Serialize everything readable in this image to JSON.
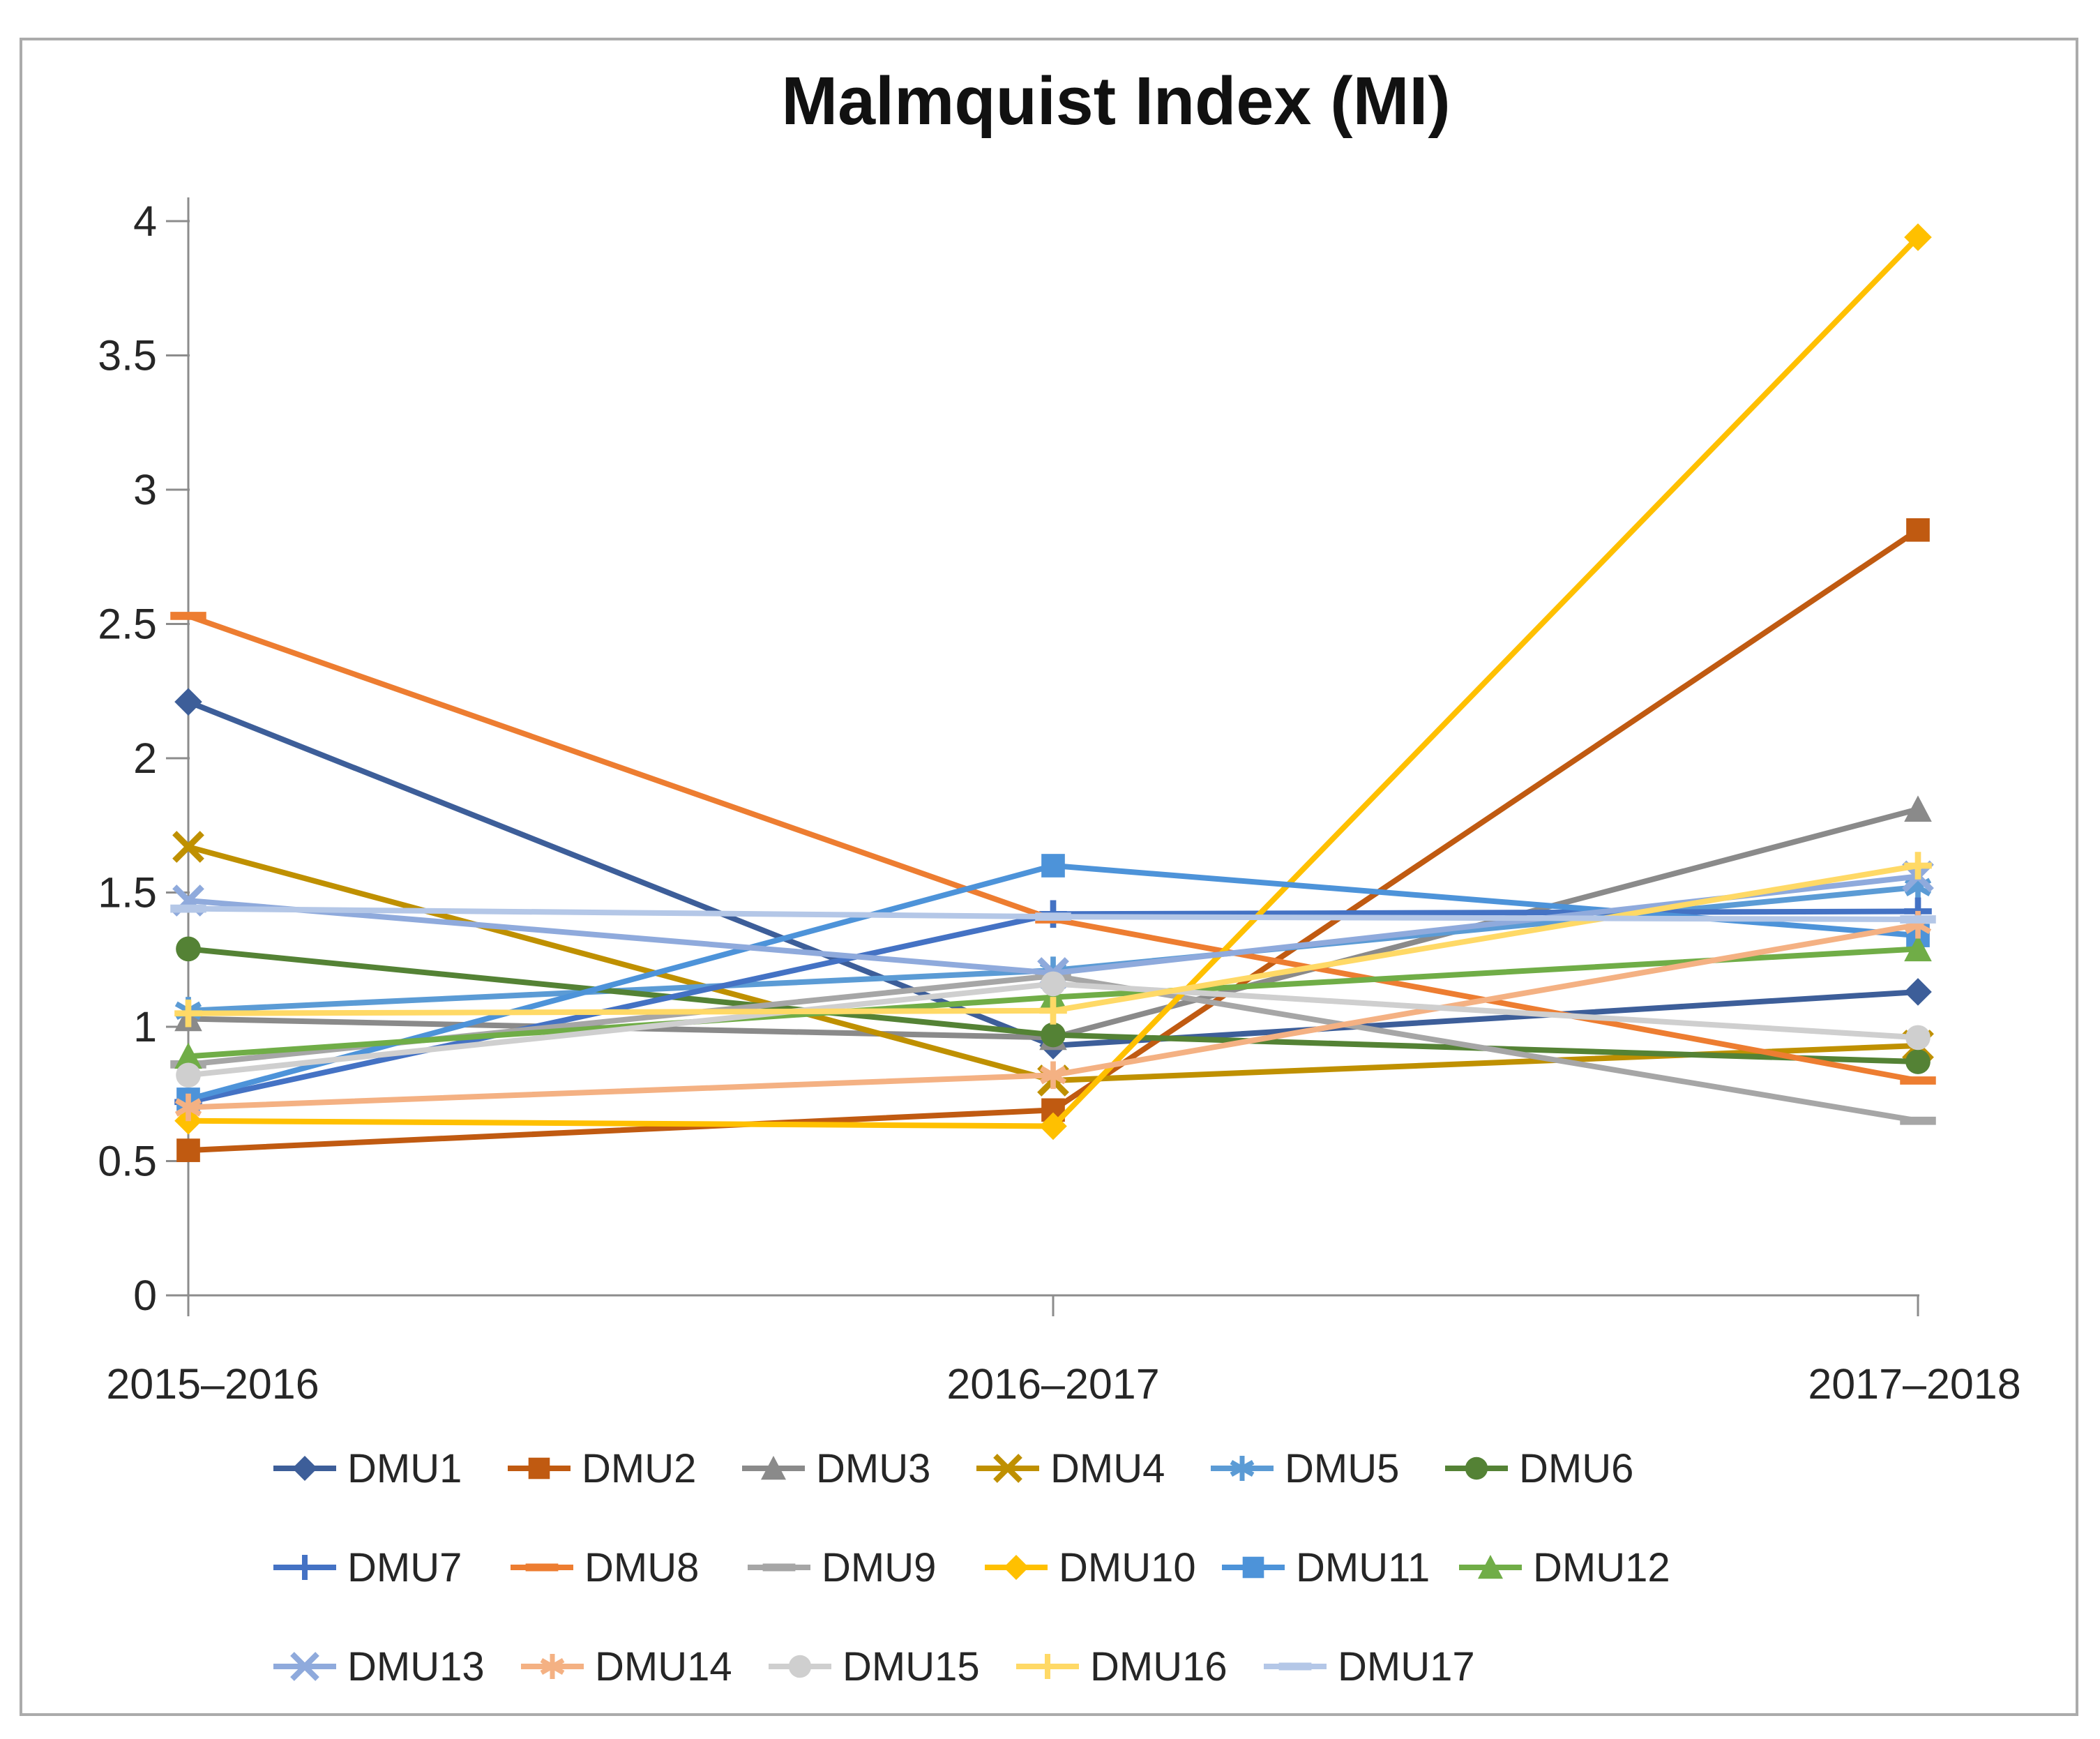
{
  "figure": {
    "border_color": "#ababab",
    "background_color": "#ffffff",
    "axis_color": "#8c8c8c",
    "text_color": "#262626"
  },
  "chart_data": {
    "type": "line",
    "title": "Malmquist Index (MI)",
    "xlabel": "",
    "ylabel": "",
    "categories": [
      "2015–2016",
      "2016–2017",
      "2017–2018"
    ],
    "y_axis": {
      "min": 0,
      "max": 4,
      "step": 0.5,
      "tick_labels": [
        "0",
        "0.5",
        "1",
        "1.5",
        "2",
        "2.5",
        "3",
        "3.5",
        "4"
      ]
    },
    "grid": false,
    "legend_position": "bottom",
    "legend_rows": [
      6,
      6,
      5
    ],
    "series": [
      {
        "name": "DMU1",
        "color": "#3d5e99",
        "marker": "diamond",
        "values": [
          2.21,
          0.93,
          1.13
        ]
      },
      {
        "name": "DMU2",
        "color": "#c05a11",
        "marker": "square",
        "values": [
          0.54,
          0.69,
          2.85
        ]
      },
      {
        "name": "DMU3",
        "color": "#8a8a8a",
        "marker": "triangle",
        "values": [
          1.03,
          0.96,
          1.81
        ]
      },
      {
        "name": "DMU4",
        "color": "#bf9000",
        "marker": "x",
        "values": [
          1.67,
          0.8,
          0.93
        ]
      },
      {
        "name": "DMU5",
        "color": "#5b9bd5",
        "marker": "asterisk",
        "values": [
          1.06,
          1.21,
          1.52
        ]
      },
      {
        "name": "DMU6",
        "color": "#548235",
        "marker": "circle",
        "values": [
          1.29,
          0.97,
          0.87
        ]
      },
      {
        "name": "DMU7",
        "color": "#4472c4",
        "marker": "plus",
        "values": [
          0.72,
          1.42,
          1.43
        ]
      },
      {
        "name": "DMU8",
        "color": "#ed7d31",
        "marker": "dash",
        "values": [
          2.53,
          1.4,
          0.8
        ]
      },
      {
        "name": "DMU9",
        "color": "#a6a6a6",
        "marker": "dash",
        "values": [
          0.86,
          1.19,
          0.65
        ]
      },
      {
        "name": "DMU10",
        "color": "#ffc000",
        "marker": "diamond",
        "values": [
          0.65,
          0.63,
          3.94
        ]
      },
      {
        "name": "DMU11",
        "color": "#4d93d9",
        "marker": "square",
        "values": [
          0.73,
          1.6,
          1.34
        ]
      },
      {
        "name": "DMU12",
        "color": "#70ad47",
        "marker": "triangle",
        "values": [
          0.89,
          1.11,
          1.29
        ]
      },
      {
        "name": "DMU13",
        "color": "#8faadc",
        "marker": "x",
        "values": [
          1.47,
          1.2,
          1.56
        ]
      },
      {
        "name": "DMU14",
        "color": "#f4b183",
        "marker": "asterisk",
        "values": [
          0.7,
          0.82,
          1.38
        ]
      },
      {
        "name": "DMU15",
        "color": "#cfcfcf",
        "marker": "circle",
        "values": [
          0.82,
          1.16,
          0.96
        ]
      },
      {
        "name": "DMU16",
        "color": "#ffd966",
        "marker": "plus",
        "values": [
          1.05,
          1.06,
          1.6
        ]
      },
      {
        "name": "DMU17",
        "color": "#b4c7e7",
        "marker": "dash",
        "values": [
          1.44,
          1.41,
          1.4
        ]
      }
    ]
  }
}
